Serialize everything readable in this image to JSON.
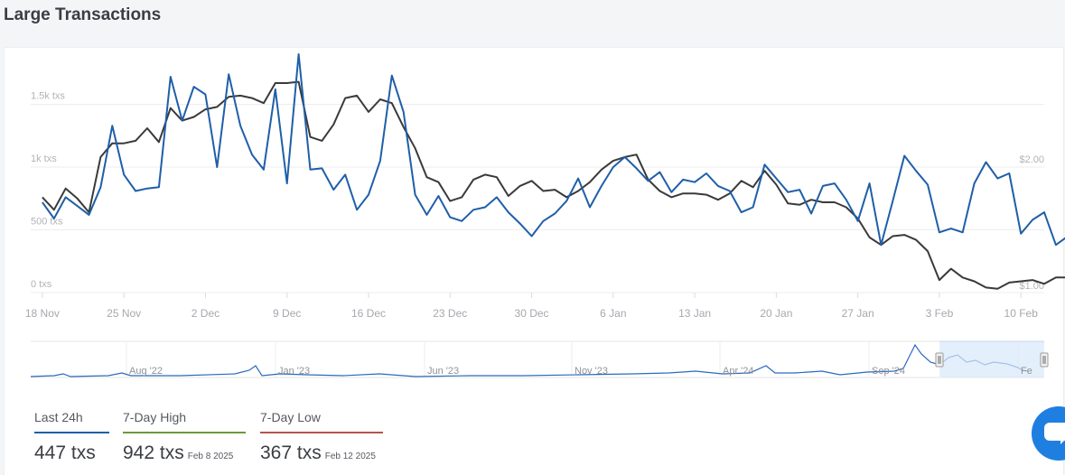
{
  "title": "Large Transactions",
  "colors": {
    "transactions": "#1f5fa8",
    "price": "#3a3a3a",
    "grid": "#ececec",
    "navigator_fill": "#d9e8fb",
    "last24_underline": "#1f5fa8",
    "high_underline": "#6a9a3a",
    "low_underline": "#b5544a"
  },
  "icons": {
    "chat": "chat-bubble-icon",
    "handle": "grip-handle-icon"
  },
  "chart_data": {
    "type": "line",
    "x_tick_labels": [
      "18 Nov",
      "25 Nov",
      "2 Dec",
      "9 Dec",
      "16 Dec",
      "23 Dec",
      "30 Dec",
      "6 Jan",
      "13 Jan",
      "20 Jan",
      "27 Jan",
      "3 Feb",
      "10 Feb"
    ],
    "y_left_ticks": [
      "0 txs",
      "500 txs",
      "1k txs",
      "1.5k txs"
    ],
    "y_left_values": [
      0,
      500,
      1000,
      1500
    ],
    "y_right_ticks": [
      "$1.00",
      "$2.00"
    ],
    "y_right_values": [
      1,
      2
    ],
    "x_range": [
      -1,
      86
    ],
    "ylim": [
      0,
      1900
    ],
    "ylim_right": [
      1,
      2
    ],
    "grid": true,
    "series": [
      {
        "axis": "left",
        "values": [
          720,
          590,
          760,
          690,
          620,
          840,
          1330,
          940,
          810,
          830,
          840,
          1720,
          1370,
          1640,
          1580,
          1000,
          1740,
          1330,
          1100,
          980,
          1620,
          870,
          1900,
          980,
          990,
          820,
          940,
          660,
          780,
          1050,
          1730,
          1440,
          780,
          620,
          770,
          600,
          570,
          660,
          680,
          760,
          640,
          550,
          450,
          570,
          630,
          730,
          910,
          680,
          850,
          1000,
          1080,
          990,
          890,
          960,
          800,
          900,
          880,
          950,
          850,
          810,
          640,
          680,
          1020,
          910,
          800,
          820,
          630,
          850,
          870,
          740,
          570,
          870,
          380,
          730,
          1090,
          970,
          860,
          480,
          510,
          480,
          870,
          1040,
          910,
          950,
          470,
          580,
          640,
          380,
          447
        ]
      },
      {
        "axis": "left",
        "values": [
          760,
          660,
          830,
          750,
          640,
          1080,
          1190,
          1190,
          1210,
          1310,
          1200,
          1470,
          1370,
          1400,
          1460,
          1480,
          1560,
          1570,
          1550,
          1510,
          1670,
          1670,
          1680,
          1240,
          1210,
          1340,
          1550,
          1570,
          1440,
          1540,
          1510,
          1320,
          1150,
          920,
          880,
          730,
          760,
          900,
          940,
          920,
          770,
          850,
          890,
          810,
          820,
          760,
          810,
          880,
          980,
          1050,
          1080,
          1100,
          900,
          810,
          760,
          790,
          790,
          780,
          740,
          790,
          890,
          840,
          970,
          860,
          710,
          700,
          740,
          720,
          720,
          680,
          590,
          440,
          380,
          450,
          460,
          420,
          330,
          100,
          190,
          120,
          90,
          40,
          30,
          80,
          90,
          100,
          70,
          120,
          120
        ]
      }
    ]
  },
  "navigator": {
    "labels": [
      "Aug '22",
      "Jan '23",
      "Jun '23",
      "Nov '23",
      "Apr '24",
      "Sep '24",
      "Fe"
    ]
  },
  "stats": {
    "last24": {
      "label": "Last 24h",
      "value": "447 txs"
    },
    "high": {
      "label": "7-Day High",
      "value": "942 txs",
      "date": "Feb 8 2025"
    },
    "low": {
      "label": "7-Day Low",
      "value": "367 txs",
      "date": "Feb 12 2025"
    }
  }
}
